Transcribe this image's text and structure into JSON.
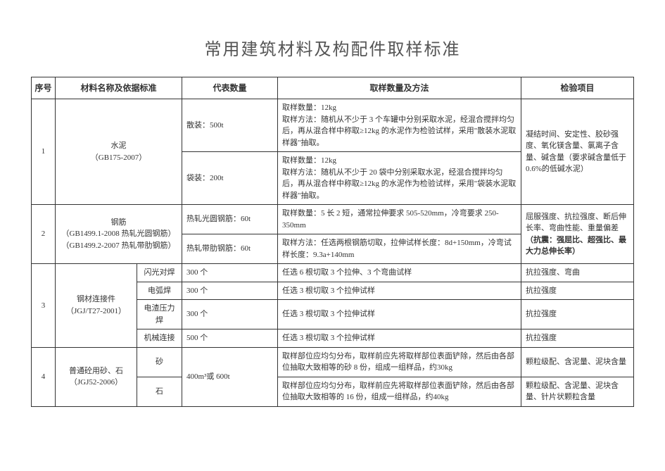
{
  "title": "常用建筑材料及构配件取样标准",
  "headers": {
    "seq": "序号",
    "name": "材料名称及依据标准",
    "qty": "代表数量",
    "method": "取样数量及方法",
    "test": "检验项目"
  },
  "rows": {
    "r1": {
      "seq": "1",
      "name": "水泥\n（GB175-2007）",
      "qty1": "散装：500t",
      "method1": "取样数量：12kg\n取样方法：随机从不少于 3 个车罐中分别采取水泥，经混合搅拌均匀后，再从混合样中称取≥12kg 的水泥作为检验试样，采用\"散装水泥取样器\"抽取。",
      "test": "凝结时间、安定性、胶砂强度、氧化镁含量、氯离子含量、碱含量（要求碱含量低于0.6%的低碱水泥）",
      "qty2": "袋装：200t",
      "method2": "取样数量：12kg\n取样方法：随机从不少于 20 袋中分别采取水泥，经混合搅拌均匀后，再从混合样中称取≥12kg 的水泥作为检验试样，采用\"袋装水泥取样器\"抽取。"
    },
    "r2": {
      "seq": "2",
      "name": "钢筋\n（GB1499.1-2008 热轧光圆钢筋）\n（GB1499.2-2007 热轧带肋钢筋）",
      "qty1": "热轧光圆钢筋：60t",
      "method1": "取样数量：5 长 2 短，通常拉伸要求 505-520mm，冷弯要求 250-350mm",
      "test_plain": "屈服强度、抗拉强度、断后伸长率、弯曲性能、重量偏差",
      "test_bold": "（抗震：强屈比、超强比、最大力总伸长率）",
      "qty2": "热轧带肋钢筋：60t",
      "method2": "取样方法：任选两根钢筋切取，拉伸试样长度：8d+150mm，冷弯试样长度：9.3a+140mm"
    },
    "r3": {
      "seq": "3",
      "name": "钢材连接件\n（JGJ/T27-2001）",
      "sub1": "闪光对焊",
      "qty1": "300 个",
      "method1": "任选 6 根切取 3 个拉伸、3 个弯曲试样",
      "test1": "抗拉强度、弯曲",
      "sub2": "电弧焊",
      "qty2": "300 个",
      "method2": "任选 3 根切取 3 个拉伸试样",
      "test2": "抗拉强度",
      "sub3": "电渣压力焊",
      "qty3": "300 个",
      "method3": "任选 3 根切取 3 个拉伸试样",
      "test3": "抗拉强度",
      "sub4": "机械连接",
      "qty4": "500 个",
      "method4": "任选 3 根切取 3 个拉伸试样",
      "test4": "抗拉强度"
    },
    "r4": {
      "seq": "4",
      "name": "普通砼用砂、石\n（JGJ52-2006）",
      "sub1": "砂",
      "qty": "400m³或 600t",
      "method1": "取样部位应均匀分布，取样前应先将取样部位表面铲除，然后由各部位抽取大致相等的砂 8 份，组成一组样品，约30kg",
      "test1": "颗粒级配、含泥量、泥块含量",
      "sub2": "石",
      "method2": "取样部位应均匀分布，取样前应先将取样部位表面铲除，然后由各部位抽取大致相等的 16 份，组成一组样品，约40kg",
      "test2": "颗粒级配、含泥量、泥块含量、针片状颗粒含量"
    }
  }
}
